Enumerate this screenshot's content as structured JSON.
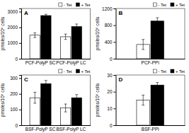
{
  "chart_data": [
    {
      "type": "bar",
      "title": "A",
      "y_label": "pmoles/10⁶ cells",
      "categories": [
        "PCF-PolyP SC",
        "PCF-PolyP LC"
      ],
      "series": [
        {
          "name": "- Tet",
          "color": "white",
          "values": [
            1500,
            1400
          ],
          "errors": [
            150,
            170
          ]
        },
        {
          "name": "+ Tet",
          "color": "black",
          "values": [
            2750,
            2050
          ],
          "errors": [
            80,
            160
          ]
        }
      ],
      "ylim": [
        0,
        3200
      ],
      "yticks": [
        0,
        1000,
        2000,
        3000
      ],
      "legend": "upper right"
    },
    {
      "type": "bar",
      "title": "B",
      "y_label": "pmoles/10⁶ cells",
      "categories": [
        "PCF-PPi"
      ],
      "series": [
        {
          "name": "- Tet",
          "color": "white",
          "values": [
            340
          ],
          "errors": [
            120
          ]
        },
        {
          "name": "+ Tet",
          "color": "black",
          "values": [
            900
          ],
          "errors": [
            80
          ]
        }
      ],
      "ylim": [
        0,
        1200
      ],
      "yticks": [
        0,
        400,
        800,
        1200
      ],
      "legend": "upper right"
    },
    {
      "type": "bar",
      "title": "C",
      "y_label": "pmoles/10⁶ cells",
      "categories": [
        "BSF-PolyP SC",
        "BSF-PolyP LC"
      ],
      "series": [
        {
          "name": "- Tet",
          "color": "white",
          "values": [
            175,
            110
          ],
          "errors": [
            35,
            25
          ]
        },
        {
          "name": "+ Tet",
          "color": "black",
          "values": [
            265,
            175
          ],
          "errors": [
            20,
            20
          ]
        }
      ],
      "ylim": [
        0,
        320
      ],
      "yticks": [
        0,
        100,
        200,
        300
      ],
      "legend": "upper right"
    },
    {
      "type": "bar",
      "title": "D",
      "y_label": "pmoles/10⁶ cells",
      "categories": [
        "BSF-PPi"
      ],
      "series": [
        {
          "name": "- Tet",
          "color": "white",
          "values": [
            15
          ],
          "errors": [
            3
          ]
        },
        {
          "name": "+ Tet",
          "color": "black",
          "values": [
            24
          ],
          "errors": [
            1.5
          ]
        }
      ],
      "ylim": [
        0,
        30
      ],
      "yticks": [
        0,
        10,
        20,
        30
      ],
      "legend": "upper right"
    }
  ]
}
